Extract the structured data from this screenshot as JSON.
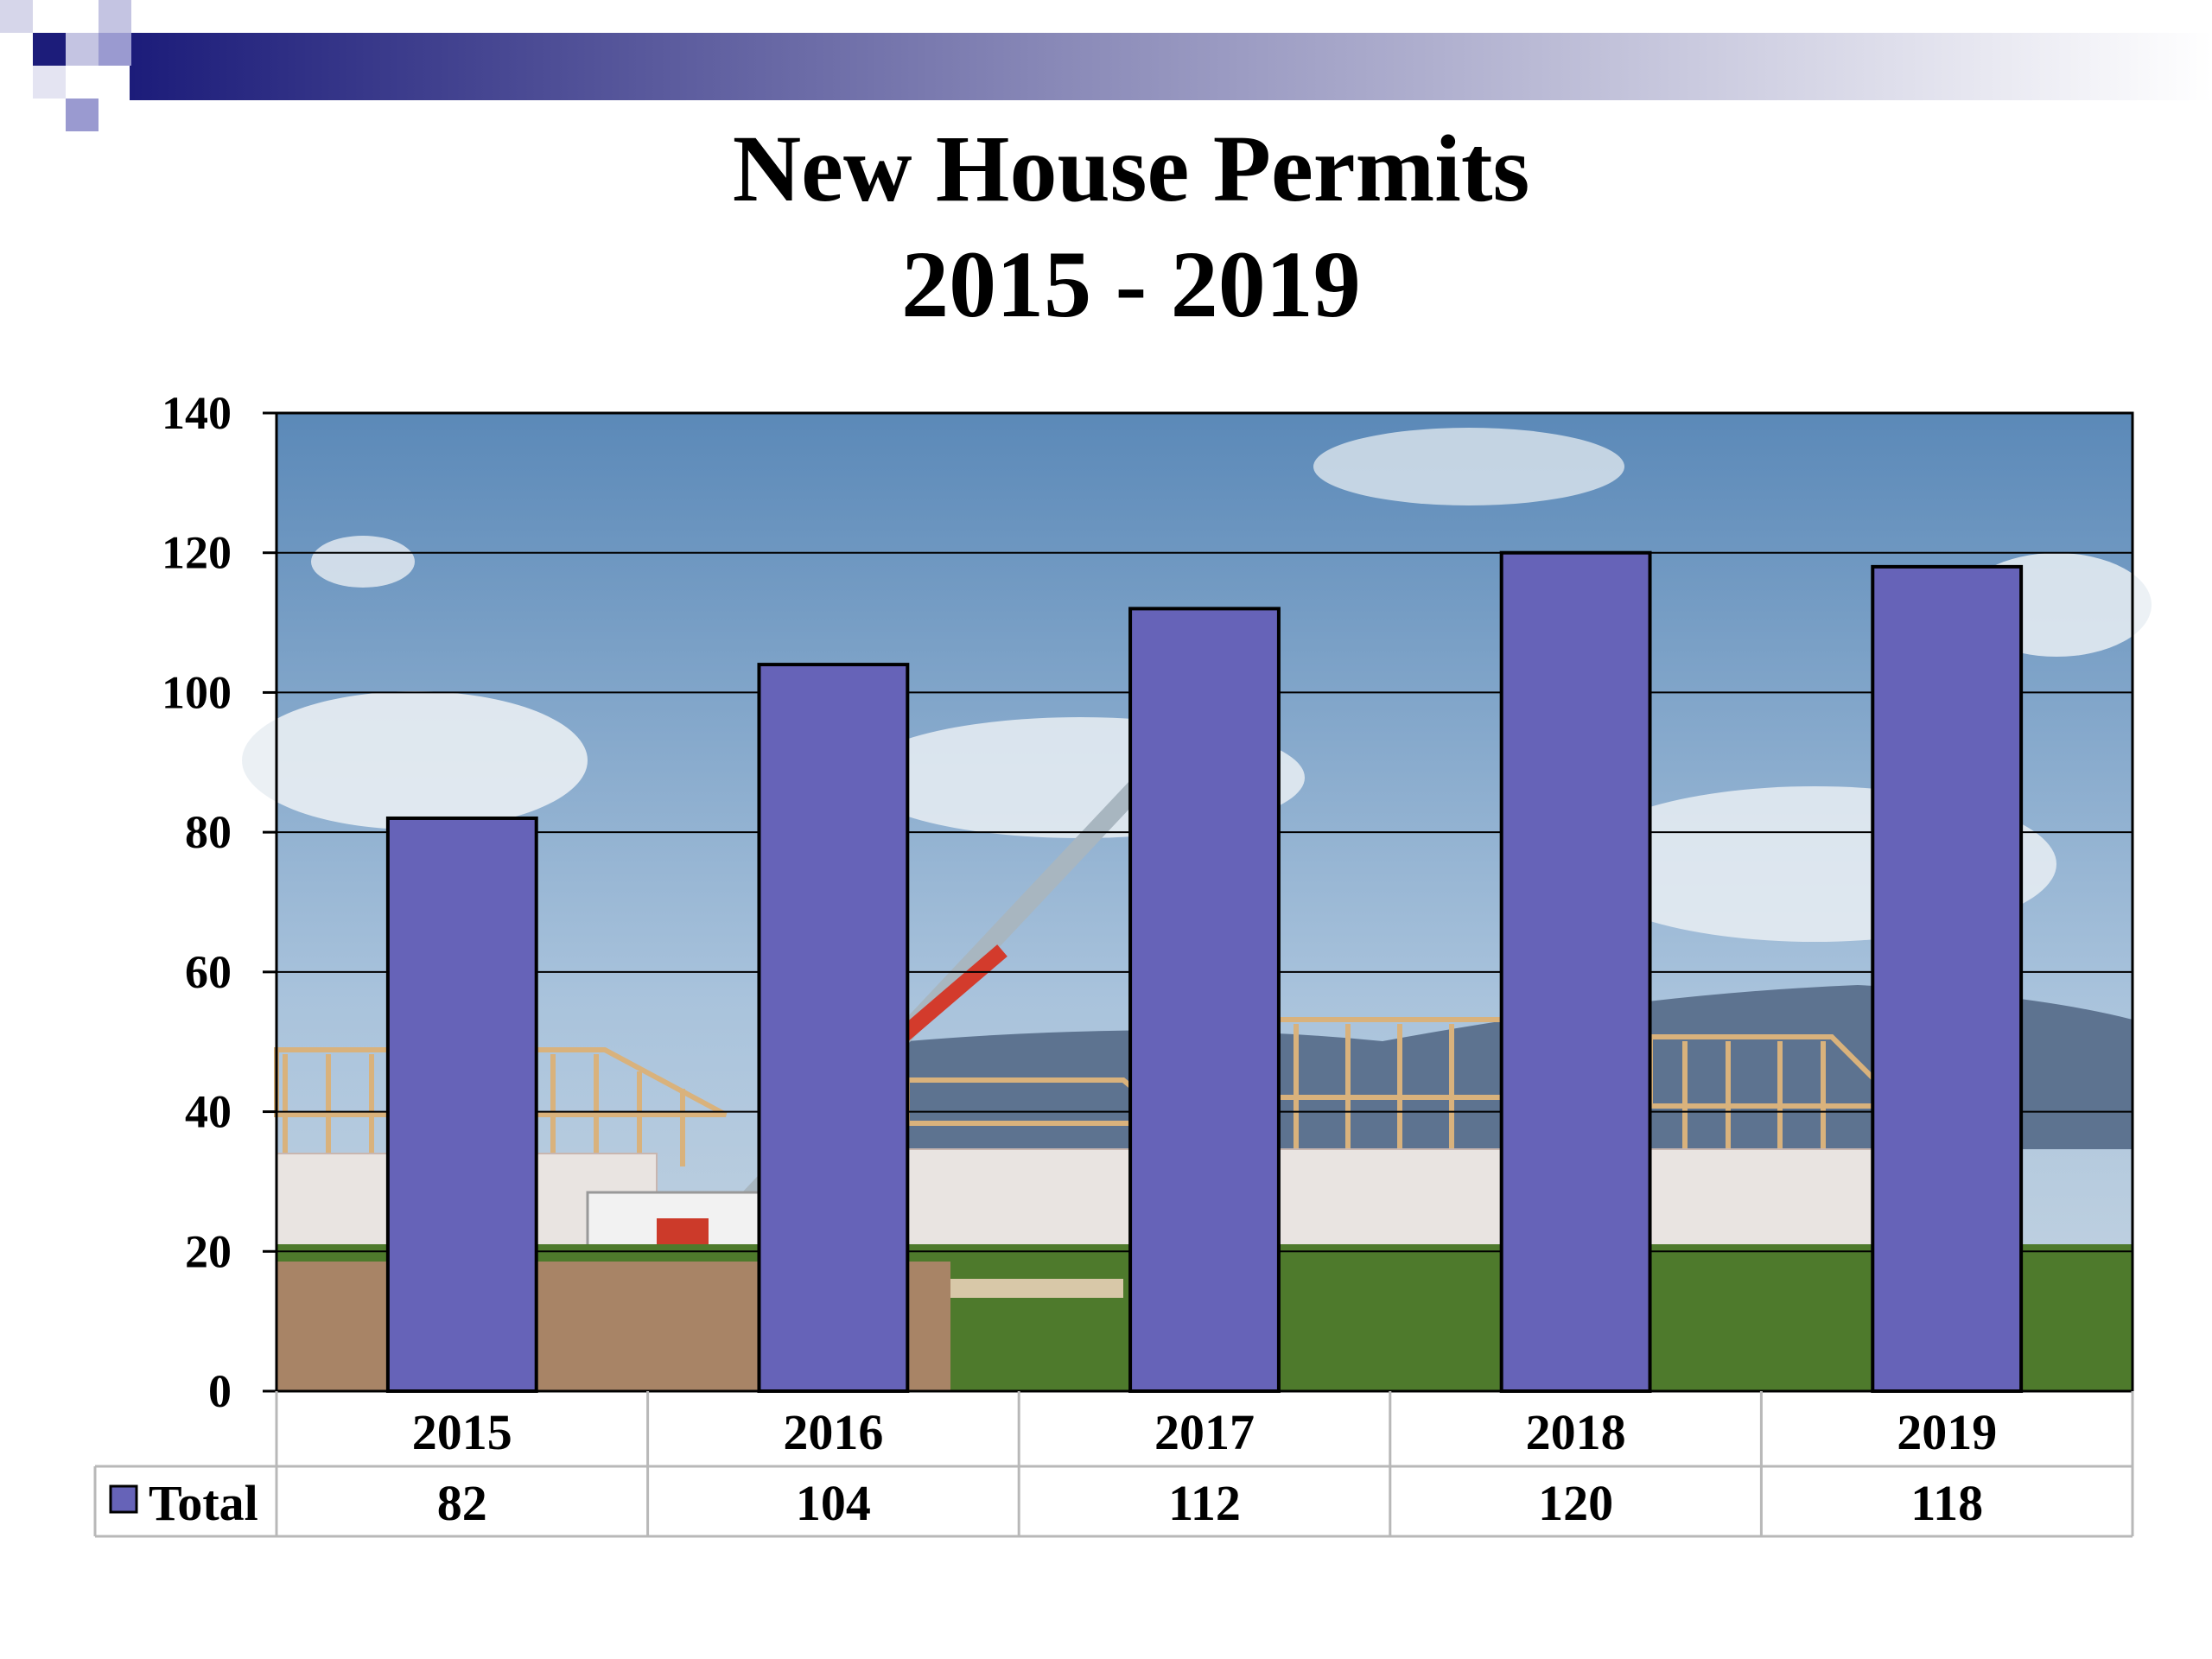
{
  "slide": {
    "title_line1": "New House Permits",
    "title_line2": "2015 - 2019"
  },
  "colors": {
    "bar_fill": "#6663b8",
    "bar_stroke": "#000000",
    "banner_dark": "#1c1c7a",
    "sky_top": "#5b89b8",
    "sky_bottom": "#a9c3dc",
    "ground": "#4e7a2c"
  },
  "chart_data": {
    "type": "bar",
    "categories": [
      "2015",
      "2016",
      "2017",
      "2018",
      "2019"
    ],
    "series": [
      {
        "name": "Total",
        "values": [
          82,
          104,
          112,
          120,
          118
        ]
      }
    ],
    "ylim": [
      0,
      140
    ],
    "yticks": [
      0,
      20,
      40,
      60,
      80,
      100,
      120,
      140
    ],
    "grid": true,
    "legend": "data-table-left",
    "data_table": true,
    "background": "construction-site-photo"
  }
}
